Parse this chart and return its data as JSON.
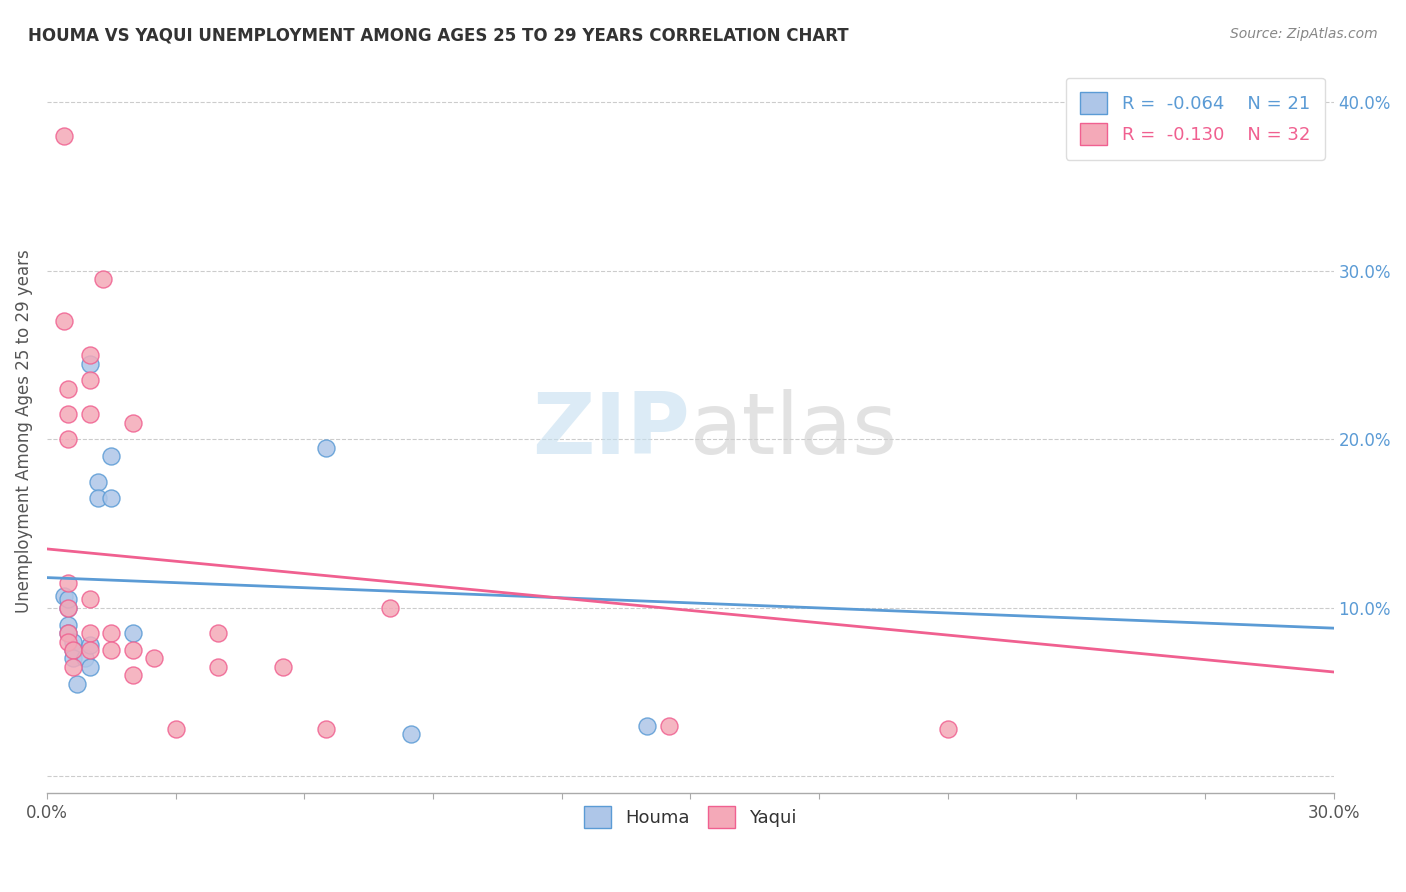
{
  "title": "HOUMA VS YAQUI UNEMPLOYMENT AMONG AGES 25 TO 29 YEARS CORRELATION CHART",
  "source": "Source: ZipAtlas.com",
  "ylabel": "Unemployment Among Ages 25 to 29 years",
  "xlim": [
    0.0,
    0.3
  ],
  "ylim": [
    -0.01,
    0.42
  ],
  "x_ticks": [
    0.0,
    0.03,
    0.06,
    0.09,
    0.12,
    0.15,
    0.18,
    0.21,
    0.24,
    0.27,
    0.3
  ],
  "y_ticks": [
    0.0,
    0.1,
    0.2,
    0.3,
    0.4
  ],
  "x_tick_labels": [
    "0.0%",
    "",
    "",
    "",
    "",
    "",
    "",
    "",
    "",
    "",
    "30.0%"
  ],
  "y_tick_labels_right": [
    "",
    "10.0%",
    "20.0%",
    "30.0%",
    "40.0%"
  ],
  "houma_fill_color": "#aec6e8",
  "houma_edge_color": "#5b9bd5",
  "yaqui_fill_color": "#f4a9b8",
  "yaqui_edge_color": "#f06090",
  "houma_line_color": "#5b9bd5",
  "yaqui_line_color": "#f06090",
  "legend_houma_R": "-0.064",
  "legend_houma_N": "21",
  "legend_yaqui_R": "-0.130",
  "legend_yaqui_N": "32",
  "watermark_zip": "ZIP",
  "watermark_atlas": "atlas",
  "houma_x": [
    0.005,
    0.01,
    0.012,
    0.015,
    0.004,
    0.005,
    0.005,
    0.005,
    0.006,
    0.006,
    0.006,
    0.007,
    0.009,
    0.01,
    0.01,
    0.012,
    0.015,
    0.02,
    0.065,
    0.085,
    0.14
  ],
  "houma_y": [
    0.1,
    0.245,
    0.175,
    0.19,
    0.107,
    0.105,
    0.09,
    0.085,
    0.08,
    0.075,
    0.07,
    0.055,
    0.07,
    0.078,
    0.065,
    0.165,
    0.165,
    0.085,
    0.195,
    0.025,
    0.03
  ],
  "yaqui_x": [
    0.004,
    0.004,
    0.005,
    0.005,
    0.005,
    0.005,
    0.005,
    0.005,
    0.005,
    0.006,
    0.006,
    0.01,
    0.01,
    0.01,
    0.01,
    0.01,
    0.01,
    0.013,
    0.015,
    0.015,
    0.02,
    0.02,
    0.02,
    0.025,
    0.03,
    0.04,
    0.04,
    0.055,
    0.065,
    0.08,
    0.21,
    0.145
  ],
  "yaqui_y": [
    0.38,
    0.27,
    0.23,
    0.215,
    0.2,
    0.115,
    0.1,
    0.085,
    0.08,
    0.075,
    0.065,
    0.25,
    0.235,
    0.215,
    0.105,
    0.085,
    0.075,
    0.295,
    0.085,
    0.075,
    0.21,
    0.075,
    0.06,
    0.07,
    0.028,
    0.085,
    0.065,
    0.065,
    0.028,
    0.1,
    0.028,
    0.03
  ],
  "houma_trend_x": [
    0.0,
    0.3
  ],
  "houma_trend_y": [
    0.118,
    0.088
  ],
  "yaqui_trend_x": [
    0.0,
    0.3
  ],
  "yaqui_trend_y": [
    0.135,
    0.062
  ],
  "background_color": "#ffffff",
  "grid_color": "#cccccc"
}
